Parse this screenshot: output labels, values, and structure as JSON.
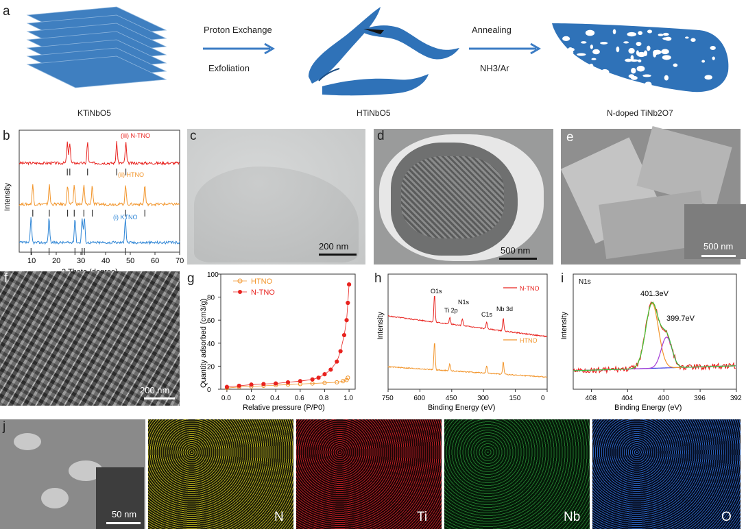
{
  "panel_a": {
    "label": "a",
    "steps": {
      "step1_top": "Proton Exchange",
      "step1_bottom": "Exfoliation",
      "step2_top": "Annealing",
      "step2_bottom": "NH3/Ar"
    },
    "materials": [
      "KTiNbO5",
      "HTiNbO5",
      "N-doped TiNb2O7"
    ]
  },
  "panel_b": {
    "label": "b",
    "ylabel": "Intensity",
    "xlabel": "2 Theta (degree)",
    "xticks": [
      "10",
      "20",
      "30",
      "40",
      "50",
      "60",
      "70"
    ],
    "series_labels": [
      "(iii) N-TNO",
      "(ii) HTNO",
      "(i) KTNO"
    ],
    "colors": [
      "#e8231f",
      "#f2952b",
      "#2f86d6"
    ]
  },
  "panel_c": {
    "label": "c",
    "scale": "200 nm"
  },
  "panel_d": {
    "label": "d",
    "scale": "500 nm"
  },
  "panel_e": {
    "label": "e",
    "scale": "500 nm"
  },
  "panel_f": {
    "label": "f",
    "scale": "200 nm"
  },
  "panel_g": {
    "label": "g",
    "ylabel": "Quantity adsorbed (cm3/g)",
    "xlabel": "Relative pressure (P/P0)",
    "legend": [
      "HTNO",
      "N-TNO"
    ],
    "colors": [
      "#f2952b",
      "#e8231f"
    ],
    "yticks": [
      "0",
      "20",
      "40",
      "60",
      "80",
      "100"
    ],
    "xticks": [
      "0.0",
      "0.2",
      "0.4",
      "0.6",
      "0.8",
      "1.0"
    ]
  },
  "panel_h": {
    "label": "h",
    "ylabel": "Intensity",
    "xlabel": "Binding Energy (eV)",
    "xticks": [
      "750",
      "600",
      "450",
      "300",
      "150",
      "0"
    ],
    "peaks": [
      "O1s",
      "Ti 2p",
      "N1s",
      "C1s",
      "Nb 3d"
    ],
    "legend": [
      "N-TNO",
      "HTNO"
    ],
    "colors": [
      "#e8231f",
      "#f2952b"
    ]
  },
  "panel_i": {
    "label": "i",
    "title": "N1s",
    "ylabel": "Intensity",
    "xlabel": "Binding Energy (eV)",
    "xticks": [
      "408",
      "404",
      "400",
      "396",
      "392"
    ],
    "annotations": [
      "401.3eV",
      "399.7eV"
    ]
  },
  "panel_j": {
    "label": "j",
    "scale": "50 nm",
    "elements": [
      "N",
      "Ti",
      "Nb",
      "O"
    ],
    "map_colors": [
      "#c9c21d",
      "#d2222a",
      "#2c9b3c",
      "#2f6fd6"
    ]
  },
  "chart_data": [
    {
      "type": "line",
      "panel": "b",
      "xlabel": "2 Theta (degree)",
      "ylabel": "Intensity",
      "xlim": [
        5,
        70
      ],
      "series": [
        {
          "name": "(iii) N-TNO",
          "peaks_x": [
            24.5,
            25.5,
            32.7,
            44.5,
            48.2
          ]
        },
        {
          "name": "(ii) HTNO",
          "peaks_x": [
            10.5,
            17.2,
            24.6,
            27.3,
            31.2,
            34.6,
            48.1,
            55.9
          ]
        },
        {
          "name": "(i) KTNO",
          "peaks_x": [
            9.8,
            17.1,
            27.6,
            30.5,
            31.4,
            48.0
          ]
        }
      ]
    },
    {
      "type": "scatter",
      "panel": "g",
      "xlabel": "Relative pressure (P/P0)",
      "ylabel": "Quantity adsorbed (cm3/g)",
      "xlim": [
        -0.05,
        1.05
      ],
      "ylim": [
        0,
        100
      ],
      "series": [
        {
          "name": "HTNO",
          "x": [
            0.0,
            0.1,
            0.2,
            0.3,
            0.4,
            0.5,
            0.6,
            0.7,
            0.8,
            0.9,
            0.95,
            0.98,
            0.99
          ],
          "y": [
            1,
            2,
            2.5,
            3,
            3.5,
            4,
            4.5,
            5,
            5.5,
            6,
            7,
            8,
            10
          ]
        },
        {
          "name": "N-TNO",
          "x": [
            0.0,
            0.1,
            0.2,
            0.3,
            0.4,
            0.5,
            0.6,
            0.7,
            0.75,
            0.8,
            0.85,
            0.9,
            0.93,
            0.96,
            0.98,
            0.99,
            1.0
          ],
          "y": [
            2,
            3,
            4,
            4.5,
            5,
            6,
            7,
            8.5,
            10,
            13,
            17,
            24,
            33,
            47,
            60,
            75,
            91
          ]
        }
      ]
    },
    {
      "type": "line",
      "panel": "h",
      "xlabel": "Binding Energy (eV)",
      "ylabel": "Intensity",
      "xlim": [
        750,
        0
      ],
      "series": [
        {
          "name": "N-TNO",
          "peaks_x": [
            531,
            459,
            400,
            285,
            207
          ]
        },
        {
          "name": "HTNO",
          "peaks_x": [
            531,
            459,
            285,
            207
          ]
        }
      ]
    },
    {
      "type": "line",
      "panel": "i",
      "xlabel": "Binding Energy (eV)",
      "ylabel": "Intensity",
      "xlim": [
        410,
        392
      ],
      "peaks_x": [
        401.3,
        399.7
      ]
    }
  ]
}
